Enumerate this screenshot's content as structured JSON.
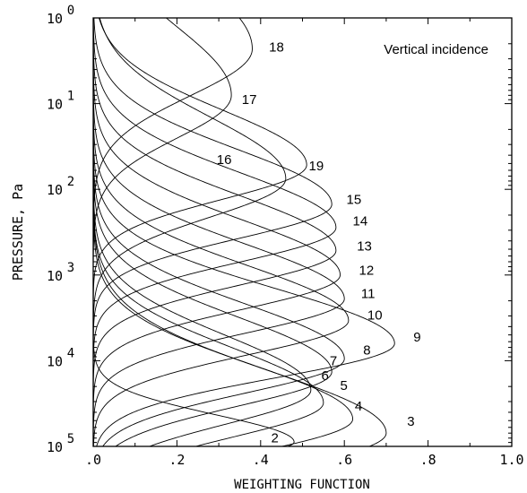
{
  "chart_data": {
    "type": "line",
    "annotation": "Vertical incidence",
    "xlabel": "WEIGHTING FUNCTION",
    "ylabel": "PRESSURE, Pa",
    "x_ticks": [
      ".0",
      ".2",
      ".4",
      ".6",
      ".8",
      "1.0"
    ],
    "xlim": [
      0,
      1.0
    ],
    "y_ticks": [
      {
        "base": "10",
        "exp": "0"
      },
      {
        "base": "10",
        "exp": "1"
      },
      {
        "base": "10",
        "exp": "2"
      },
      {
        "base": "10",
        "exp": "3"
      },
      {
        "base": "10",
        "exp": "4"
      },
      {
        "base": "10",
        "exp": "5"
      }
    ],
    "ylim": [
      1,
      100000
    ],
    "y_scale": "log-inverted",
    "grid": false,
    "series": [
      {
        "label": "2",
        "peak_weight": 0.48,
        "peak_pressure": 89000,
        "width": 0.2
      },
      {
        "label": "3",
        "peak_weight": 0.7,
        "peak_pressure": 70000,
        "width": 0.45
      },
      {
        "label": "4",
        "peak_weight": 0.62,
        "peak_pressure": 48000,
        "width": 0.4
      },
      {
        "label": "5",
        "peak_weight": 0.55,
        "peak_pressure": 31000,
        "width": 0.4
      },
      {
        "label": "6",
        "peak_weight": 0.52,
        "peak_pressure": 22000,
        "width": 0.4
      },
      {
        "label": "7",
        "peak_weight": 0.57,
        "peak_pressure": 13500,
        "width": 0.4
      },
      {
        "label": "8",
        "peak_weight": 0.6,
        "peak_pressure": 9500,
        "width": 0.4
      },
      {
        "label": "9",
        "peak_weight": 0.72,
        "peak_pressure": 6300,
        "width": 0.4
      },
      {
        "label": "10",
        "peak_weight": 0.61,
        "peak_pressure": 3400,
        "width": 0.4
      },
      {
        "label": "11",
        "peak_weight": 0.6,
        "peak_pressure": 1900,
        "width": 0.4
      },
      {
        "label": "12",
        "peak_weight": 0.59,
        "peak_pressure": 1000,
        "width": 0.4
      },
      {
        "label": "13",
        "peak_weight": 0.58,
        "peak_pressure": 520,
        "width": 0.4
      },
      {
        "label": "14",
        "peak_weight": 0.58,
        "peak_pressure": 280,
        "width": 0.4
      },
      {
        "label": "15",
        "peak_weight": 0.57,
        "peak_pressure": 150,
        "width": 0.4
      },
      {
        "label": "16",
        "peak_weight": 0.46,
        "peak_pressure": 75,
        "width": 0.45
      },
      {
        "label": "17",
        "peak_weight": 0.33,
        "peak_pressure": 8,
        "width": 0.5
      },
      {
        "label": "18",
        "peak_weight": 0.38,
        "peak_pressure": 2.3,
        "width": 0.55
      },
      {
        "label": "19",
        "peak_weight": 0.51,
        "peak_pressure": 52,
        "width": 0.4
      }
    ],
    "series_labels": [
      {
        "text": "2",
        "weight": 0.425,
        "pressure": 80000
      },
      {
        "text": "3",
        "weight": 0.75,
        "pressure": 51000
      },
      {
        "text": "4",
        "weight": 0.625,
        "pressure": 34000
      },
      {
        "text": "5",
        "weight": 0.59,
        "pressure": 19500
      },
      {
        "text": "6",
        "weight": 0.545,
        "pressure": 15000
      },
      {
        "text": "7",
        "weight": 0.565,
        "pressure": 10000
      },
      {
        "text": "8",
        "weight": 0.645,
        "pressure": 7500
      },
      {
        "text": "9",
        "weight": 0.765,
        "pressure": 5300
      },
      {
        "text": "10",
        "weight": 0.655,
        "pressure": 2950
      },
      {
        "text": "11",
        "weight": 0.64,
        "pressure": 1650
      },
      {
        "text": "12",
        "weight": 0.635,
        "pressure": 880
      },
      {
        "text": "13",
        "weight": 0.63,
        "pressure": 460
      },
      {
        "text": "14",
        "weight": 0.62,
        "pressure": 235
      },
      {
        "text": "15",
        "weight": 0.605,
        "pressure": 132
      },
      {
        "text": "16",
        "weight": 0.295,
        "pressure": 45
      },
      {
        "text": "17",
        "weight": 0.355,
        "pressure": 9
      },
      {
        "text": "18",
        "weight": 0.42,
        "pressure": 2.2
      },
      {
        "text": "19",
        "weight": 0.515,
        "pressure": 53
      }
    ]
  }
}
